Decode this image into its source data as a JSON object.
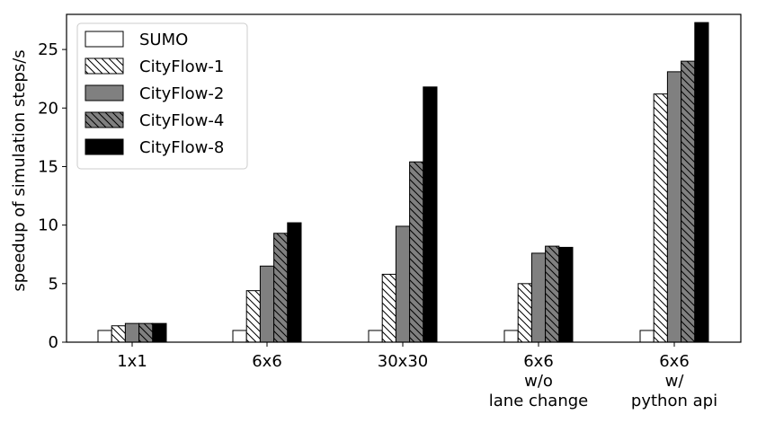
{
  "chart_data": {
    "type": "bar",
    "title": "",
    "xlabel": "",
    "ylabel": "speedup of simulation steps/s",
    "ylim": [
      0,
      28
    ],
    "yticks": [
      0,
      5,
      10,
      15,
      20,
      25
    ],
    "grid": false,
    "legend_position": "top-left",
    "categories": [
      [
        "1x1"
      ],
      [
        "6x6"
      ],
      [
        "30x30"
      ],
      [
        "6x6",
        "w/o",
        "lane change"
      ],
      [
        "6x6",
        "w/",
        "python api"
      ]
    ],
    "series": [
      {
        "name": "SUMO",
        "fill": "#ffffff",
        "hatch": false,
        "values": [
          1.0,
          1.0,
          1.0,
          1.0,
          1.0
        ]
      },
      {
        "name": "CityFlow-1",
        "fill": "#ffffff",
        "hatch": true,
        "values": [
          1.4,
          4.4,
          5.8,
          5.0,
          21.2
        ]
      },
      {
        "name": "CityFlow-2",
        "fill": "#808080",
        "hatch": false,
        "values": [
          1.6,
          6.5,
          9.9,
          7.6,
          23.1
        ]
      },
      {
        "name": "CityFlow-4",
        "fill": "#808080",
        "hatch": true,
        "values": [
          1.6,
          9.3,
          15.4,
          8.2,
          24.0
        ]
      },
      {
        "name": "CityFlow-8",
        "fill": "#000000",
        "hatch": false,
        "values": [
          1.6,
          10.2,
          21.8,
          8.1,
          27.3
        ]
      }
    ]
  }
}
